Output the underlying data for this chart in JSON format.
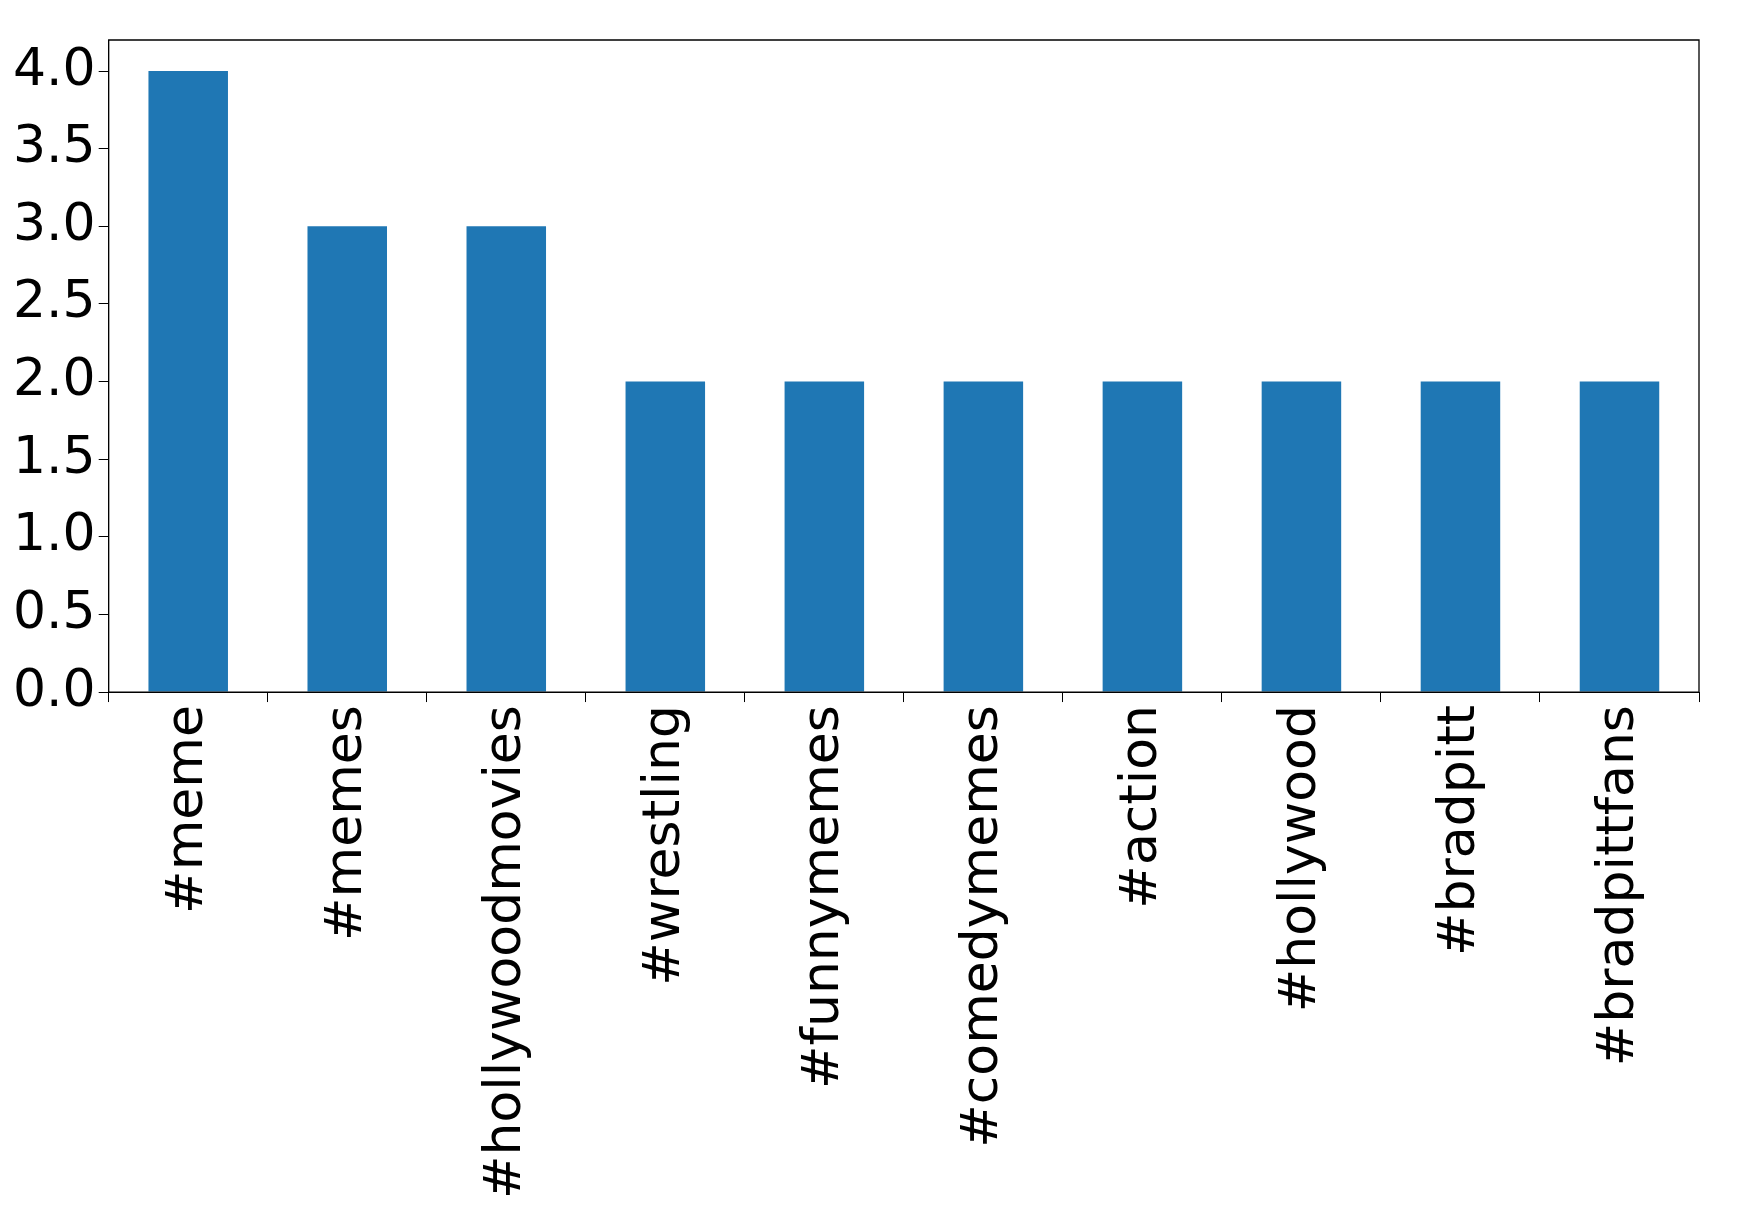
{
  "chart_data": {
    "type": "bar",
    "categories": [
      "#meme",
      "#memes",
      "#hollywoodmovies",
      "#wrestling",
      "#funnymemes",
      "#comedymemes",
      "#action",
      "#hollywood",
      "#bradpitt",
      "#bradpittfans"
    ],
    "values": [
      4,
      3,
      3,
      2,
      2,
      2,
      2,
      2,
      2,
      2
    ],
    "color": "#1f77b4",
    "ylim": [
      0,
      4.2
    ],
    "yticks": [
      {
        "value": 0,
        "label": "0.0"
      },
      {
        "value": 0.5,
        "label": "0.5"
      },
      {
        "value": 1,
        "label": "1.0"
      },
      {
        "value": 1.5,
        "label": "1.5"
      },
      {
        "value": 2,
        "label": "2.0"
      },
      {
        "value": 2.5,
        "label": "2.5"
      },
      {
        "value": 3,
        "label": "3.0"
      },
      {
        "value": 3.5,
        "label": "3.5"
      },
      {
        "value": 4,
        "label": "4.0"
      }
    ],
    "grid": false,
    "legend": false
  }
}
